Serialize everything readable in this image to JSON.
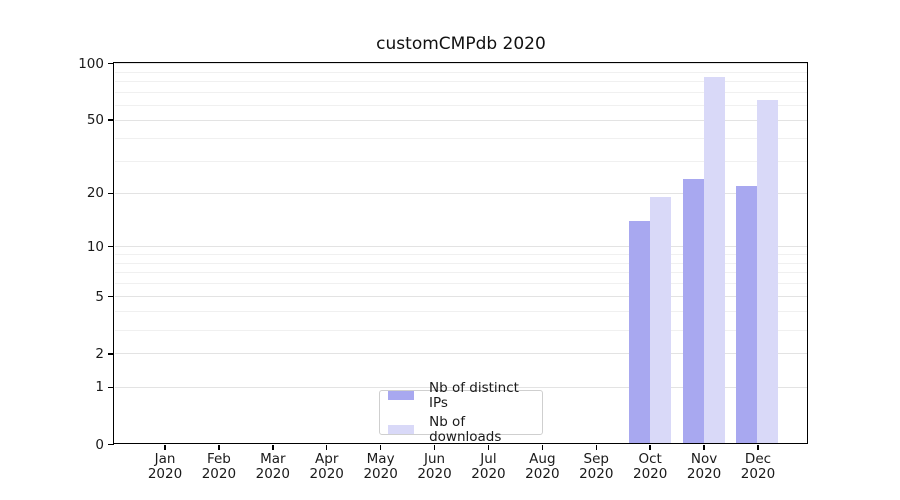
{
  "chart_data": {
    "type": "bar",
    "title": "customCMPdb 2020",
    "y_scale": "log1p",
    "categories": [
      "Jan",
      "Feb",
      "Mar",
      "Apr",
      "May",
      "Jun",
      "Jul",
      "Aug",
      "Sep",
      "Oct",
      "Nov",
      "Dec"
    ],
    "category_year": "2020",
    "series": [
      {
        "name": "Nb of distinct IPs",
        "color": "#a8a8f0",
        "values": [
          null,
          null,
          null,
          null,
          null,
          null,
          null,
          null,
          null,
          14,
          24,
          22
        ]
      },
      {
        "name": "Nb of downloads",
        "color": "#d9d9f8",
        "values": [
          null,
          null,
          null,
          null,
          null,
          null,
          null,
          null,
          null,
          19,
          85,
          64
        ]
      }
    ],
    "ylim": [
      0,
      101
    ],
    "yticks": [
      0,
      1,
      2,
      5,
      10,
      20,
      50,
      100
    ],
    "gridline_values": [
      1,
      2,
      3,
      4,
      5,
      6,
      7,
      8,
      9,
      10,
      20,
      30,
      40,
      50,
      60,
      70,
      80,
      90,
      100
    ],
    "grid": true,
    "legend_position": "lower center",
    "colors": {
      "axis": "#000000",
      "grid_major": "#e3e3e3",
      "grid_minor": "#f0f0f0",
      "text": "#1a1a1a",
      "legend_border": "#cfcfcf"
    }
  }
}
